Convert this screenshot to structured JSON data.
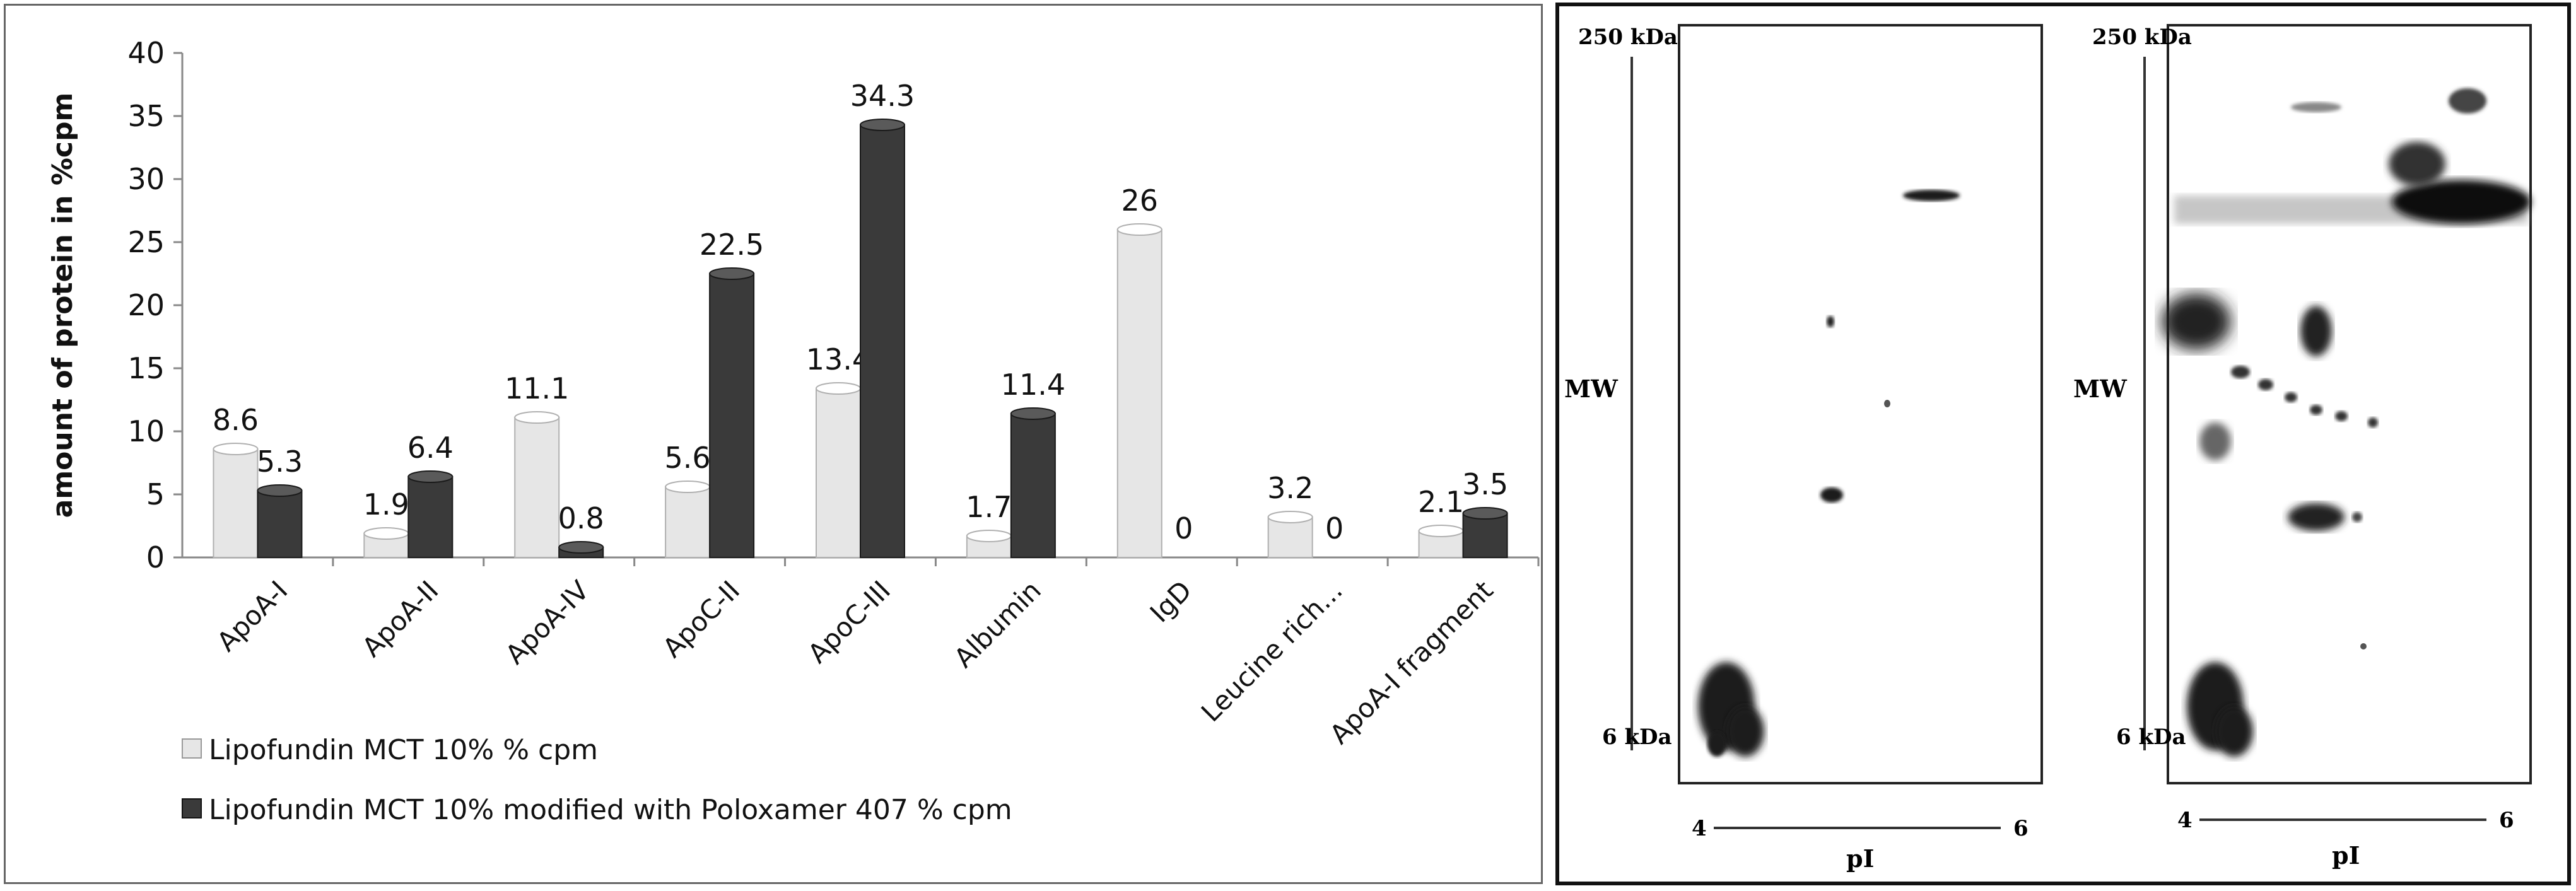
{
  "chart_data": {
    "type": "bar",
    "categories": [
      "ApoA-I",
      "ApoA-II",
      "ApoA-IV",
      "ApoC-II",
      "ApoC-III",
      "Albumin",
      "IgD",
      "Leucine rich...",
      "ApoA-I fragment"
    ],
    "series": [
      {
        "name": "Lipofundin MCT 10% % cpm",
        "values": [
          8.6,
          1.9,
          11.1,
          5.6,
          13.4,
          1.7,
          26,
          3.2,
          2.1
        ],
        "color": "#e6e6e6"
      },
      {
        "name": "Lipofundin MCT 10% modified with Poloxamer 407 % cpm",
        "values": [
          5.3,
          6.4,
          0.8,
          22.5,
          34.3,
          11.4,
          0,
          0,
          3.5
        ],
        "color": "#3a3a3a"
      }
    ],
    "ylabel": "amount of protein in %cpm",
    "ylim": [
      0,
      40
    ],
    "yticks": [
      "0",
      "5",
      "10",
      "15",
      "20",
      "25",
      "30",
      "35",
      "40"
    ],
    "grid": false,
    "legend_position": "bottom-left"
  },
  "gel": {
    "labels": {
      "top_mw": "250 kDa",
      "bottom_mw": "6 kDa",
      "mw": "MW",
      "ph_low": "4",
      "ph_high": "6",
      "pi": "pI"
    }
  }
}
